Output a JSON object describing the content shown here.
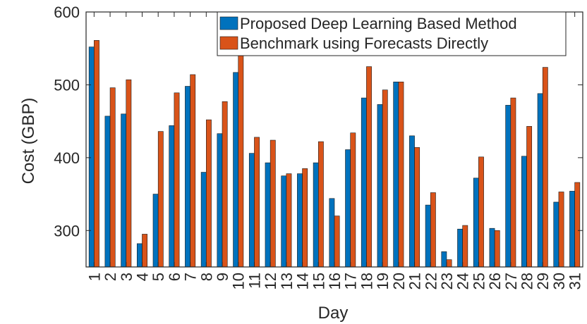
{
  "chart_data": {
    "type": "bar",
    "xlabel": "Day",
    "ylabel": "Cost (GBP)",
    "ylim": [
      250,
      600
    ],
    "yticks": [
      300,
      400,
      500,
      600
    ],
    "categories": [
      "1",
      "2",
      "3",
      "4",
      "5",
      "6",
      "7",
      "8",
      "9",
      "10",
      "11",
      "12",
      "13",
      "14",
      "15",
      "16",
      "17",
      "18",
      "19",
      "20",
      "21",
      "22",
      "23",
      "24",
      "25",
      "26",
      "27",
      "28",
      "29",
      "30",
      "31"
    ],
    "series": [
      {
        "name": "Proposed Deep Learning Based Method",
        "color": "#0072BD",
        "values": [
          552,
          457,
          460,
          282,
          350,
          444,
          498,
          380,
          433,
          517,
          406,
          393,
          375,
          378,
          393,
          344,
          411,
          482,
          473,
          504,
          430,
          335,
          271,
          302,
          372,
          303,
          472,
          402,
          488,
          339,
          354
        ]
      },
      {
        "name": "Benchmark using Forecasts Directly",
        "color": "#D95319",
        "values": [
          561,
          496,
          507,
          295,
          436,
          489,
          514,
          452,
          477,
          545,
          428,
          424,
          378,
          385,
          422,
          320,
          434,
          525,
          493,
          504,
          414,
          352,
          260,
          307,
          401,
          300,
          482,
          443,
          524,
          353,
          366
        ]
      }
    ],
    "grid": false,
    "legend_position": "top-right"
  }
}
